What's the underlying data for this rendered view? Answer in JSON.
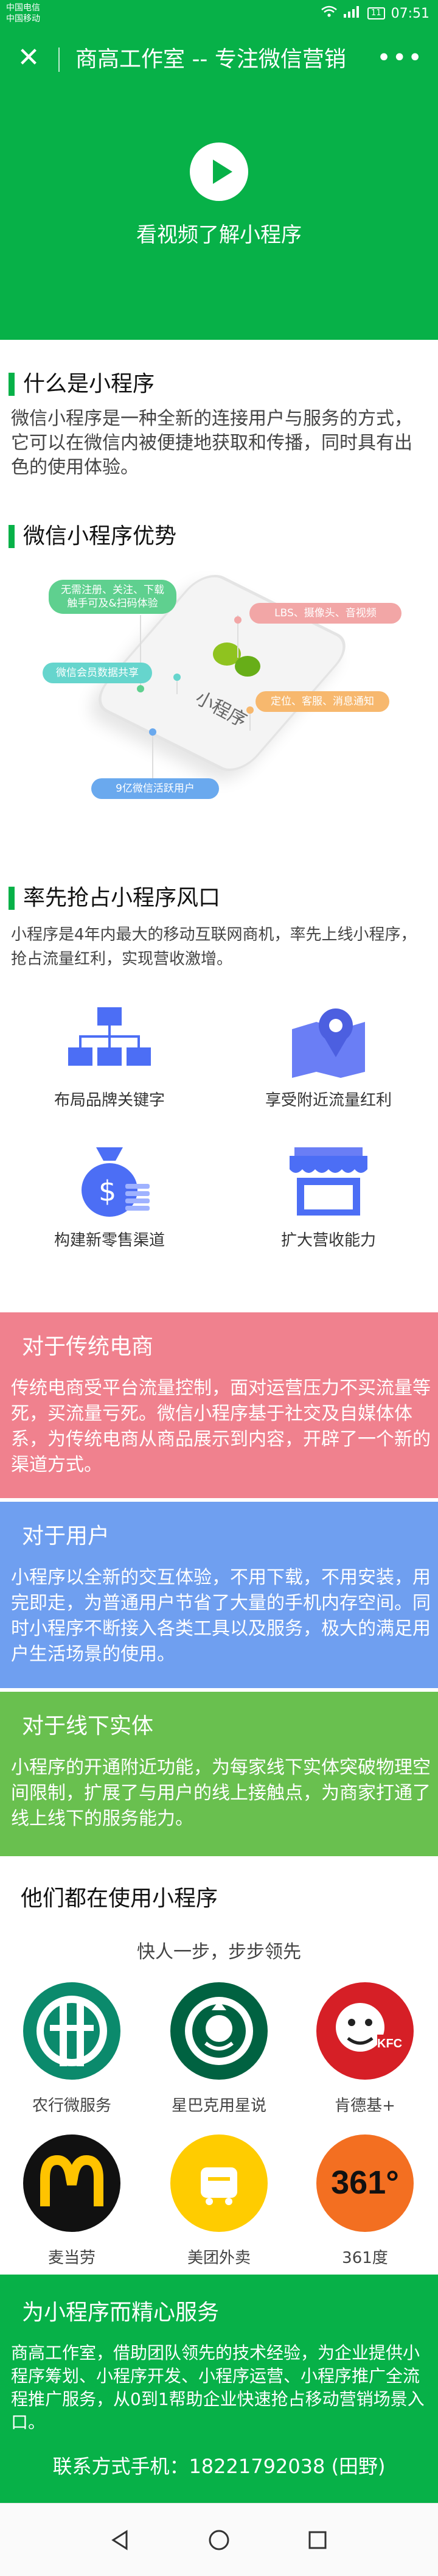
{
  "status_bar": {
    "carrier_1": "中国电信",
    "carrier_2": "中国移动",
    "battery": "11",
    "time": "07:51"
  },
  "nav": {
    "title": "商高工作室 -- 专注微信营销",
    "close_icon": "close-icon",
    "more_icon": "more-icon"
  },
  "hero": {
    "video_label": "看视频了解小程序"
  },
  "what_is": {
    "title": "什么是小程序",
    "body": "微信小程序是一种全新的连接用户与服务的方式，它可以在微信内被便捷地获取和传播，同时具有出色的使用体验。"
  },
  "advantages": {
    "title": "微信小程序优势",
    "phone_label": "小程序",
    "tags": [
      "无需注册、关注、下载\n触手可及&扫码体验",
      "LBS、摄像头、音视频",
      "微信会员数据共享",
      "定位、客服、消息通知",
      "9亿微信活跃用户"
    ]
  },
  "seize": {
    "title": "率先抢占小程序风口",
    "body": "小程序是4年内最大的移动互联网商机，率先上线小程序，抢占流量红利，实现营收激增。",
    "features": [
      {
        "label": "布局品牌关键字",
        "icon": "sitemap-icon"
      },
      {
        "label": "享受附近流量红利",
        "icon": "map-pin-icon"
      },
      {
        "label": "构建新零售渠道",
        "icon": "money-bag-icon"
      },
      {
        "label": "扩大营收能力",
        "icon": "storefront-icon"
      }
    ]
  },
  "bands": [
    {
      "title": "对于传统电商",
      "body": "传统电商受平台流量控制，面对运营压力不买流量等死，买流量亏死。微信小程序基于社交及自媒体体系，为传统电商从商品展示到内容，开辟了一个新的渠道方式。",
      "color": "#f0818e"
    },
    {
      "title": "对于用户",
      "body": "小程序以全新的交互体验，不用下载，不用安装，用完即走，为普通用户节省了大量的手机内存空间。同时小程序不断接入各类工具以及服务，极大的满足用户生活场景的使用。",
      "color": "#6f9ff0"
    },
    {
      "title": "对于线下实体",
      "body": "小程序的开通附近功能，为每家线下实体突破物理空间限制，扩展了与用户的线上接触点，为商家打通了线上线下的服务能力。",
      "color": "#69c04f"
    }
  ],
  "brands": {
    "title": "他们都在使用小程序",
    "subtitle": "快人一步，步步领先",
    "items": [
      {
        "name": "农行微服务",
        "icon": "abc-bank-logo",
        "color": "#0b8a6c"
      },
      {
        "name": "星巴克用星说",
        "icon": "starbucks-logo",
        "color": "#006241"
      },
      {
        "name": "肯德基+",
        "icon": "kfc-logo",
        "color": "#d61f26"
      },
      {
        "name": "麦当劳",
        "icon": "mcdonalds-logo",
        "color": "#111111"
      },
      {
        "name": "美团外卖",
        "icon": "meituan-logo",
        "color": "#ffcc00"
      },
      {
        "name": "361度",
        "icon": "361-logo",
        "color": "#f36f21"
      }
    ],
    "kfc_text": "KFC",
    "logo_361": "361°"
  },
  "footer": {
    "title": "为小程序而精心服务",
    "body": "商高工作室，借助团队领先的技术经验，为企业提供小程序筹划、小程序开发、小程序运营、小程序推广全流程推广服务，从0到1帮助企业快速抢占移动营销场景入口。",
    "contact": "联系方式手机：18221792038 (田野)"
  }
}
